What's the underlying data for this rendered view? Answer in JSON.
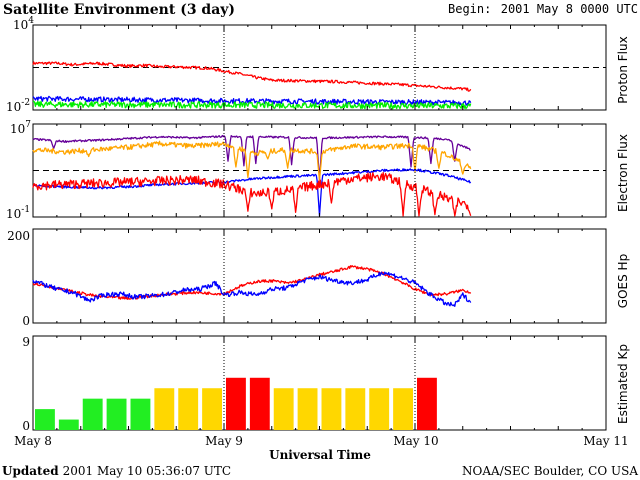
{
  "header": {
    "title": "Satellite Environment (3 day)",
    "begin_label": "Begin:",
    "begin_value": "2001 May 8 0000 UTC"
  },
  "footer": {
    "updated_label": "Updated",
    "updated_value": "2001 May 10 05:36:07 UTC",
    "credit": "NOAA/SEC Boulder, CO USA"
  },
  "x_axis": {
    "label": "Universal Time",
    "ticks": [
      "May 8",
      "May 9",
      "May 10",
      "May 11"
    ]
  },
  "colors": {
    "red": "#ff0000",
    "blue": "#0000ff",
    "green": "#00ee00",
    "orange": "#ffa500",
    "purple": "#660099",
    "kp_green": "#22ee22",
    "kp_yellow": "#ffd700",
    "kp_red": "#ff0000"
  },
  "chart_data": [
    {
      "type": "line",
      "name": "proton",
      "ylabel": "Proton Flux",
      "y_tick_labels": {
        "top_base": "10",
        "top_exp": "4",
        "bottom_base": "10",
        "bottom_exp": "-2"
      },
      "log_scale": true,
      "ylim_log10": [
        -2,
        4
      ],
      "threshold_log10": 1,
      "xlim_hours": [
        0,
        72
      ],
      "day_markers_hours": [
        24,
        48
      ],
      "series": [
        {
          "color": "red",
          "x": [
            0,
            3,
            5,
            8,
            10,
            12,
            14,
            16,
            18,
            20,
            22,
            24,
            26,
            28,
            30,
            34,
            38,
            42,
            46,
            50,
            54,
            55
          ],
          "y": [
            1.3,
            1.3,
            1.2,
            1.3,
            1.2,
            1.1,
            1.15,
            1.05,
            1.05,
            1.0,
            0.95,
            0.75,
            0.55,
            0.3,
            0.1,
            0.05,
            0.0,
            -0.1,
            -0.2,
            -0.35,
            -0.5,
            -0.6
          ],
          "noise": 0.1
        },
        {
          "color": "blue",
          "x": [
            0,
            24,
            48,
            55
          ],
          "y": [
            -1.2,
            -1.35,
            -1.45,
            -1.5
          ],
          "noise": 0.18
        },
        {
          "color": "green",
          "x": [
            0,
            24,
            48,
            55
          ],
          "y": [
            -1.6,
            -1.65,
            -1.7,
            -1.72
          ],
          "noise": 0.22
        }
      ]
    },
    {
      "type": "line",
      "name": "electron",
      "ylabel": "Electron Flux",
      "y_tick_labels": {
        "top_base": "10",
        "top_exp": "7",
        "bottom_base": "10",
        "bottom_exp": "-1"
      },
      "log_scale": true,
      "ylim_log10": [
        -1,
        7
      ],
      "threshold_log10": 3,
      "xlim_hours": [
        0,
        72
      ],
      "day_markers_hours": [
        24,
        48
      ],
      "series": [
        {
          "color": "purple",
          "x": [
            0,
            4,
            8,
            12,
            16,
            20,
            24,
            28,
            32,
            36,
            40,
            44,
            48,
            52,
            55
          ],
          "y": [
            5.7,
            5.5,
            5.6,
            5.75,
            5.9,
            5.8,
            5.95,
            5.9,
            5.85,
            5.8,
            5.85,
            5.9,
            5.85,
            5.7,
            4.8
          ],
          "noise": 0.08,
          "dips": [
            [
              2.6,
              4.9
            ],
            [
              24.5,
              3.8
            ],
            [
              26.5,
              3.4
            ],
            [
              28,
              3.6
            ],
            [
              32.5,
              3.5
            ],
            [
              36,
              2.2
            ],
            [
              47.5,
              3.3
            ],
            [
              50,
              3.6
            ],
            [
              53,
              3.8
            ]
          ]
        },
        {
          "color": "orange",
          "x": [
            0,
            4,
            8,
            12,
            16,
            20,
            24,
            28,
            32,
            36,
            40,
            44,
            48,
            52,
            55
          ],
          "y": [
            4.8,
            4.6,
            4.8,
            5.0,
            5.3,
            5.1,
            5.3,
            4.5,
            4.8,
            4.6,
            5.1,
            5.0,
            5.2,
            4.4,
            3.2
          ],
          "noise": 0.22,
          "dips": [
            [
              7,
              4.2
            ],
            [
              25.5,
              3.3
            ],
            [
              27,
              2.4
            ],
            [
              29.5,
              4.0
            ],
            [
              32,
              3.2
            ],
            [
              36,
              2.2
            ],
            [
              48,
              2.9
            ],
            [
              51,
              3.2
            ],
            [
              54,
              2.7
            ]
          ]
        },
        {
          "color": "blue",
          "x": [
            0,
            4,
            8,
            12,
            16,
            20,
            24,
            28,
            32,
            36,
            40,
            44,
            48,
            52,
            55
          ],
          "y": [
            1.7,
            1.6,
            1.5,
            1.6,
            1.8,
            1.9,
            2.0,
            2.3,
            2.5,
            2.6,
            2.8,
            3.0,
            3.1,
            2.6,
            2.0
          ],
          "noise": 0.1,
          "dips": [
            [
              36,
              -0.9
            ]
          ]
        },
        {
          "color": "red",
          "x": [
            0,
            4,
            8,
            12,
            16,
            20,
            24,
            28,
            32,
            36,
            40,
            44,
            48,
            52,
            55
          ],
          "y": [
            1.7,
            1.8,
            1.9,
            2.0,
            2.1,
            2.2,
            1.8,
            1.0,
            1.3,
            1.8,
            2.3,
            2.5,
            1.6,
            0.6,
            0.0
          ],
          "noise": 0.4,
          "dips": [
            [
              27,
              -0.5
            ],
            [
              30,
              -0.3
            ],
            [
              33,
              -0.6
            ],
            [
              37.5,
              0.2
            ],
            [
              46.5,
              -0.9
            ],
            [
              48.5,
              -0.9
            ],
            [
              50.5,
              -0.8
            ],
            [
              53,
              -0.9
            ],
            [
              55,
              -0.9
            ]
          ]
        }
      ]
    },
    {
      "type": "line",
      "name": "goes-hp",
      "ylabel": "GOES Hp",
      "y_tick_labels": {
        "top": "200",
        "bottom": "0"
      },
      "log_scale": false,
      "ylim": [
        0,
        200
      ],
      "xlim_hours": [
        0,
        72
      ],
      "day_markers_hours": [
        24,
        48
      ],
      "series": [
        {
          "color": "red",
          "x": [
            0,
            4,
            8,
            12,
            16,
            20,
            24,
            26,
            28,
            30,
            32,
            34,
            36,
            38,
            40,
            42,
            44,
            46,
            48,
            50,
            52,
            54,
            55
          ],
          "y": [
            85,
            70,
            57,
            52,
            60,
            65,
            62,
            78,
            88,
            90,
            85,
            92,
            103,
            110,
            120,
            115,
            105,
            90,
            72,
            60,
            62,
            70,
            65
          ],
          "noise": 3
        },
        {
          "color": "blue",
          "x": [
            0,
            3,
            5,
            7,
            9,
            11,
            13,
            15,
            17,
            19,
            21,
            23,
            24,
            26,
            28,
            30,
            32,
            34,
            36,
            38,
            40,
            42,
            44,
            46,
            48,
            50,
            52,
            53,
            54,
            55
          ],
          "y": [
            90,
            72,
            65,
            48,
            60,
            62,
            55,
            58,
            62,
            70,
            72,
            85,
            60,
            65,
            60,
            72,
            75,
            90,
            98,
            90,
            85,
            92,
            108,
            98,
            85,
            60,
            40,
            38,
            60,
            45
          ],
          "noise": 5
        }
      ]
    },
    {
      "type": "bar",
      "name": "estimated-kp",
      "ylabel": "Estimated Kp",
      "y_tick_labels": {
        "top": "9",
        "bottom": "0"
      },
      "ylim": [
        0,
        9
      ],
      "xlim_hours": [
        0,
        72
      ],
      "day_markers_hours": [
        24,
        48
      ],
      "bar_start_hours": [
        0,
        3,
        6,
        9,
        12,
        15,
        18,
        21,
        24,
        27,
        30,
        33,
        36,
        39,
        42,
        45,
        48
      ],
      "values": [
        2,
        1,
        3,
        3,
        3,
        4,
        4,
        4,
        5,
        5,
        4,
        4,
        4,
        4,
        4,
        4,
        5
      ],
      "colors": [
        "kp_green",
        "kp_green",
        "kp_green",
        "kp_green",
        "kp_green",
        "kp_yellow",
        "kp_yellow",
        "kp_yellow",
        "kp_red",
        "kp_red",
        "kp_yellow",
        "kp_yellow",
        "kp_yellow",
        "kp_yellow",
        "kp_yellow",
        "kp_yellow",
        "kp_red"
      ]
    }
  ]
}
